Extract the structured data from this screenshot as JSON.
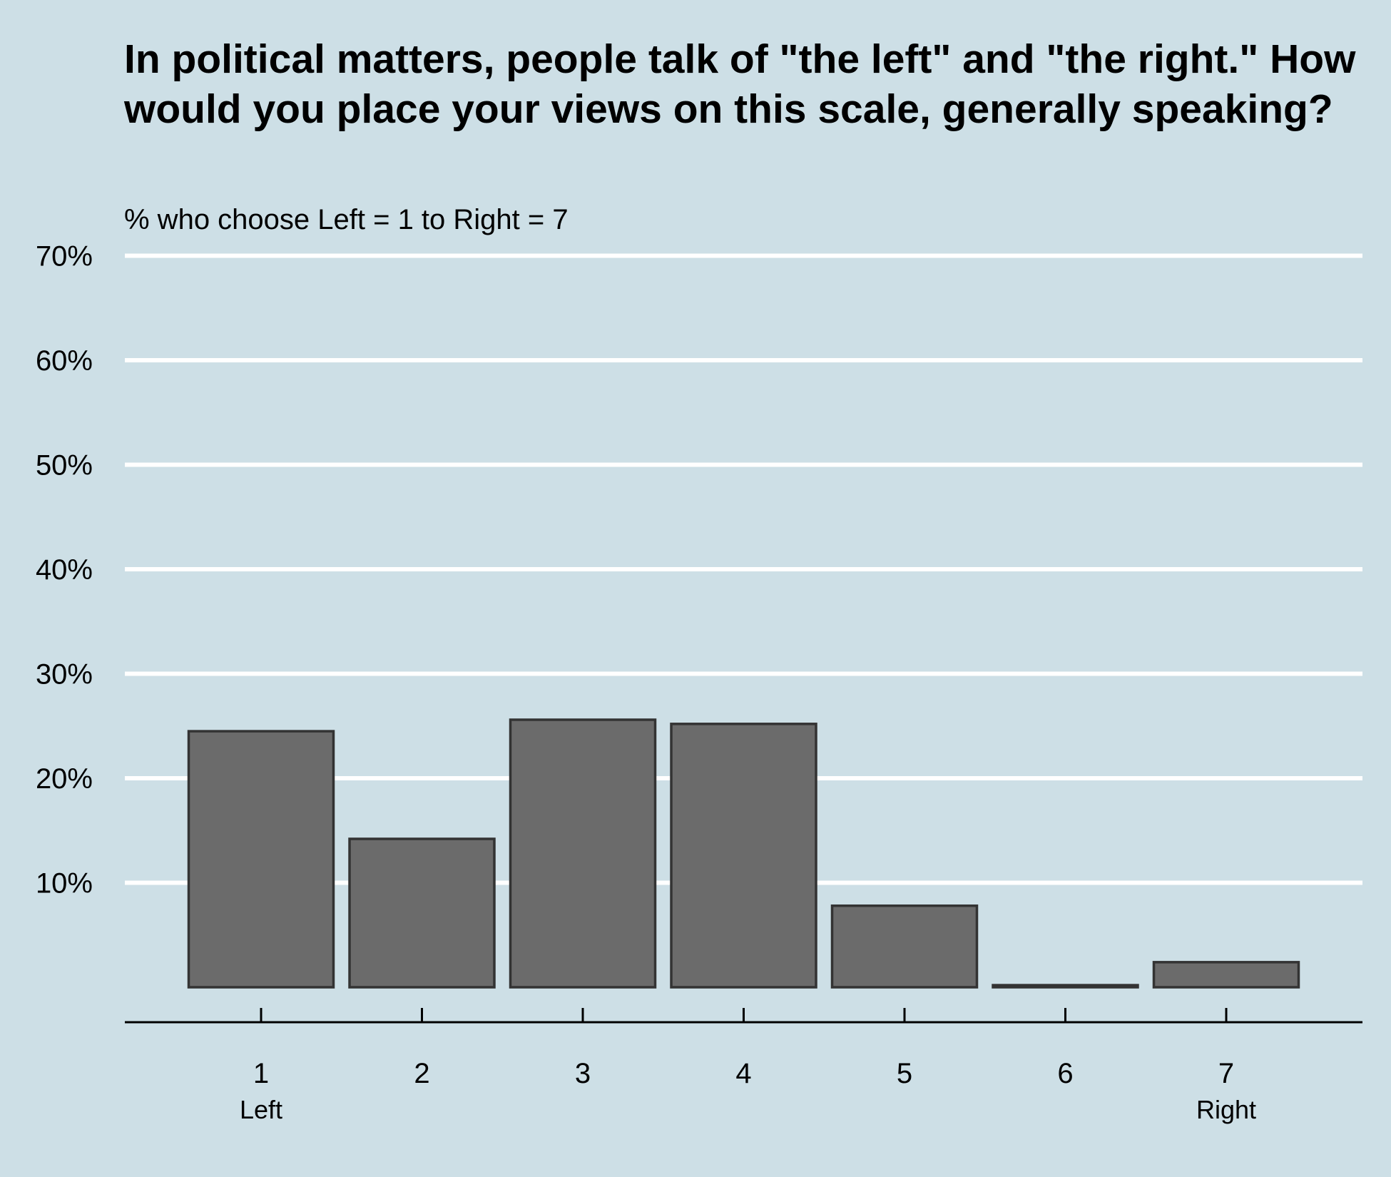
{
  "chart_data": {
    "type": "bar",
    "title": "In political matters, people talk of \"the left\" and \"the right.\" How would you place your views on this scale, generally speaking?",
    "subtitle": "% who choose Left = 1 to Right = 7",
    "categories": [
      "1",
      "2",
      "3",
      "4",
      "5",
      "6",
      "7"
    ],
    "category_sublabels": [
      "Left",
      "",
      "",
      "",
      "",
      "",
      "Right"
    ],
    "values": [
      24.5,
      14.2,
      25.6,
      25.2,
      7.8,
      0.2,
      2.4
    ],
    "unit": "%",
    "ylim": [
      0,
      70
    ],
    "yticks": [
      10,
      20,
      30,
      40,
      50,
      60,
      70
    ],
    "ytick_labels": [
      "10%",
      "20%",
      "30%",
      "40%",
      "50%",
      "60%",
      "70%"
    ],
    "xlabel": "",
    "ylabel": "",
    "grid": true,
    "legend": "none",
    "colors": {
      "background": "#cddfe6",
      "bar_fill": "#6b6b6b",
      "bar_stroke": "#333333",
      "gridline": "#ffffff",
      "axis": "#000000"
    }
  }
}
